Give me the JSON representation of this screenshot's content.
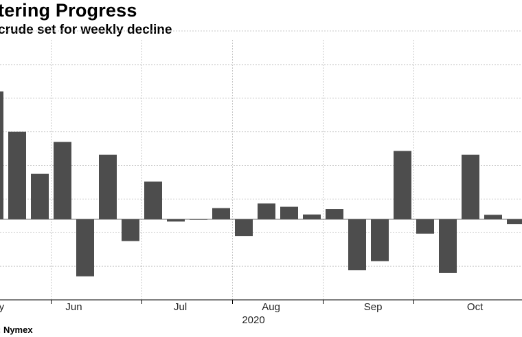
{
  "title": "tering Progress",
  "subtitle": "crude set for weekly decline",
  "source": ": Nymex",
  "colors": {
    "bar": "#4d4d4d",
    "grid": "#c8c8c8",
    "axis": "#000000"
  },
  "chart_data": {
    "type": "bar",
    "title": "tering Progress",
    "subtitle": "crude set for weekly decline",
    "xlabel": "2020",
    "ylabel": "",
    "grid": true,
    "values": [
      3.8,
      2.6,
      1.35,
      2.3,
      -1.7,
      1.92,
      -0.65,
      1.12,
      -0.07,
      -0.02,
      0.33,
      -0.5,
      0.47,
      0.37,
      0.14,
      0.3,
      -1.52,
      -1.25,
      2.03,
      -0.43,
      -1.6,
      1.92,
      0.13,
      -0.15
    ],
    "ylim": [
      -2.4,
      5.6
    ],
    "month_labels": [
      {
        "label": "May",
        "index": 0
      },
      {
        "label": "Jun",
        "index": 3.5
      },
      {
        "label": "Jul",
        "index": 8.2
      },
      {
        "label": "Aug",
        "index": 12.2
      },
      {
        "label": "Sep",
        "index": 16.7
      },
      {
        "label": "Oct",
        "index": 21.2
      }
    ],
    "year_label": "2020"
  }
}
